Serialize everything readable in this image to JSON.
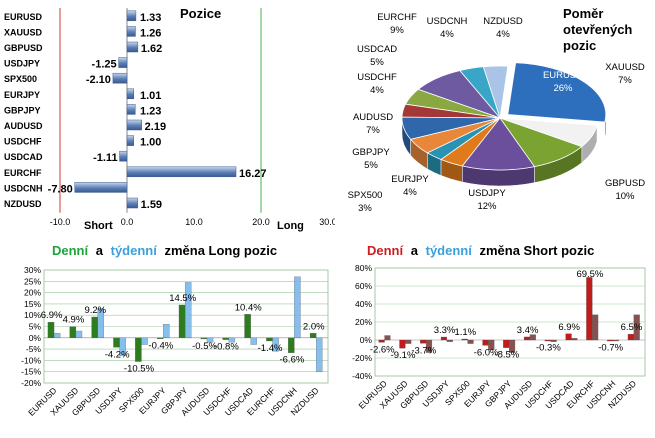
{
  "chart_data": [
    {
      "type": "bar",
      "orientation": "horizontal",
      "title": "Pozice",
      "categories": [
        "EURUSD",
        "XAUUSD",
        "GBPUSD",
        "USDJPY",
        "SPX500",
        "EURJPY",
        "GBPJPY",
        "AUDUSD",
        "USDCHF",
        "USDCAD",
        "EURCHF",
        "USDCNH",
        "NZDUSD"
      ],
      "values": [
        1.33,
        1.26,
        1.62,
        -1.25,
        -2.1,
        1.01,
        1.23,
        2.19,
        1.0,
        -1.11,
        16.27,
        -7.8,
        1.59
      ],
      "value_labels": [
        "1.33",
        "1.26",
        "1.62",
        "-1.25",
        "-2.10",
        "1.01",
        "1.23",
        "2.19",
        "1.00",
        "-1.11",
        "16.27",
        "-7.80",
        "1.59"
      ],
      "xlim": [
        -10,
        30
      ],
      "xticks": [
        "-10.0",
        "0.0",
        "10.0",
        "20.0",
        "30.0"
      ],
      "annotations": {
        "short": "Short",
        "long": "Long"
      },
      "colors": {
        "bar": "#5b7fb8",
        "bar_light": "#c9d6ea",
        "short_line": "#d33a3a",
        "long_line": "#4caf50"
      }
    },
    {
      "type": "pie",
      "title": "Poměr otevřených pozic",
      "labels": [
        "EURUSD",
        "XAUUSD",
        "GBPUSD",
        "USDJPY",
        "EURJPY",
        "SPX500",
        "GBPJPY",
        "AUDUSD",
        "USDCHF",
        "USDCAD",
        "EURCHF",
        "USDCNH",
        "NZDUSD"
      ],
      "values": [
        26,
        7,
        10,
        12,
        4,
        3,
        5,
        7,
        4,
        5,
        9,
        4,
        4
      ],
      "value_labels": [
        "26%",
        "7%",
        "10%",
        "12%",
        "4%",
        "3%",
        "5%",
        "7%",
        "4%",
        "5%",
        "9%",
        "4%",
        "4%"
      ],
      "colors": [
        "#2e6fbd",
        "#f2f2f2",
        "#7aa332",
        "#6b4f9c",
        "#e07a1a",
        "#2a93b3",
        "#e8873a",
        "#2f67aa",
        "#a33936",
        "#8aa842",
        "#6e5aa0",
        "#39a6c8",
        "#a9c4e6"
      ]
    },
    {
      "type": "bar",
      "title_parts": {
        "denni": "Denní",
        "a": "a",
        "tydenni": "týdenní",
        "rest": "změna Long pozic"
      },
      "categories": [
        "EURUSD",
        "XAUUSD",
        "GBPUSD",
        "USDJPY",
        "SPX500",
        "EURJPY",
        "GBPJPY",
        "AUDUSD",
        "USDCHF",
        "USDCAD",
        "EURCHF",
        "USDCNH",
        "NZDUSD"
      ],
      "series": [
        {
          "values": [
            6.9,
            4.9,
            9.2,
            -4.2,
            -10.5,
            -0.4,
            14.5,
            -0.5,
            -0.8,
            10.4,
            -1.4,
            -6.6,
            2.0
          ]
        },
        {
          "values": [
            2.0,
            3.0,
            13.0,
            -8.0,
            -3.0,
            6.0,
            24.5,
            -2.0,
            -2.0,
            -3.0,
            -6.0,
            27.0,
            -15.0
          ]
        }
      ],
      "data_labels": [
        "6.9%",
        "4.9%",
        "9.2%",
        "-4.2%",
        "-10.5%",
        "-0.4%",
        "14.5%",
        "-0.5%",
        "-0.8%",
        "10.4%",
        "-1.4%",
        "-6.6%",
        "2.0%"
      ],
      "ylim": [
        -20,
        30
      ],
      "yticks": [
        "30%",
        "25%",
        "20%",
        "15%",
        "10%",
        "5%",
        "0%",
        "-5%",
        "-10%",
        "-15%",
        "-20%"
      ],
      "colors": {
        "denni": "#1fa33a",
        "tydenni": "#3aa0dc",
        "daily_bar": "#2d7d1e",
        "weekly_bar": "#7ab8ec"
      }
    },
    {
      "type": "bar",
      "title_parts": {
        "denni": "Denní",
        "a": "a",
        "tydenni": "týdenní",
        "rest": "změna Short pozic"
      },
      "categories": [
        "EURUSD",
        "XAUUSD",
        "GBPUSD",
        "USDJPY",
        "SPX500",
        "EURJPY",
        "GBPJPY",
        "AUDUSD",
        "USDCHF",
        "USDCAD",
        "EURCHF",
        "USDCNH",
        "NZDUSD"
      ],
      "series": [
        {
          "values": [
            -2.6,
            -9.1,
            -3.7,
            3.3,
            1.1,
            -6.0,
            -8.5,
            3.4,
            -0.3,
            6.9,
            69.5,
            -0.7,
            6.5
          ]
        },
        {
          "values": [
            5.0,
            -4.0,
            -14.0,
            -2.0,
            -4.0,
            -11.0,
            -14.0,
            6.0,
            -2.0,
            2.0,
            28.0,
            -1.0,
            28.0
          ]
        }
      ],
      "data_labels": [
        "-2.6%",
        "-9.1%",
        "-3.7%",
        "3.3%",
        "1.1%",
        "-6.0%",
        "-8.5%",
        "3.4%",
        "-0.3%",
        "6.9%",
        "69.5%",
        "-0.7%",
        "6.5%"
      ],
      "ylim": [
        -40,
        80
      ],
      "yticks": [
        "80%",
        "60%",
        "40%",
        "20%",
        "0%",
        "-20%",
        "-40%"
      ],
      "colors": {
        "denni": "#cc1f1f",
        "tydenni": "#3aa0dc",
        "daily_bar": "#c21b1b",
        "weekly_bar": "#7a3f3f"
      }
    }
  ]
}
